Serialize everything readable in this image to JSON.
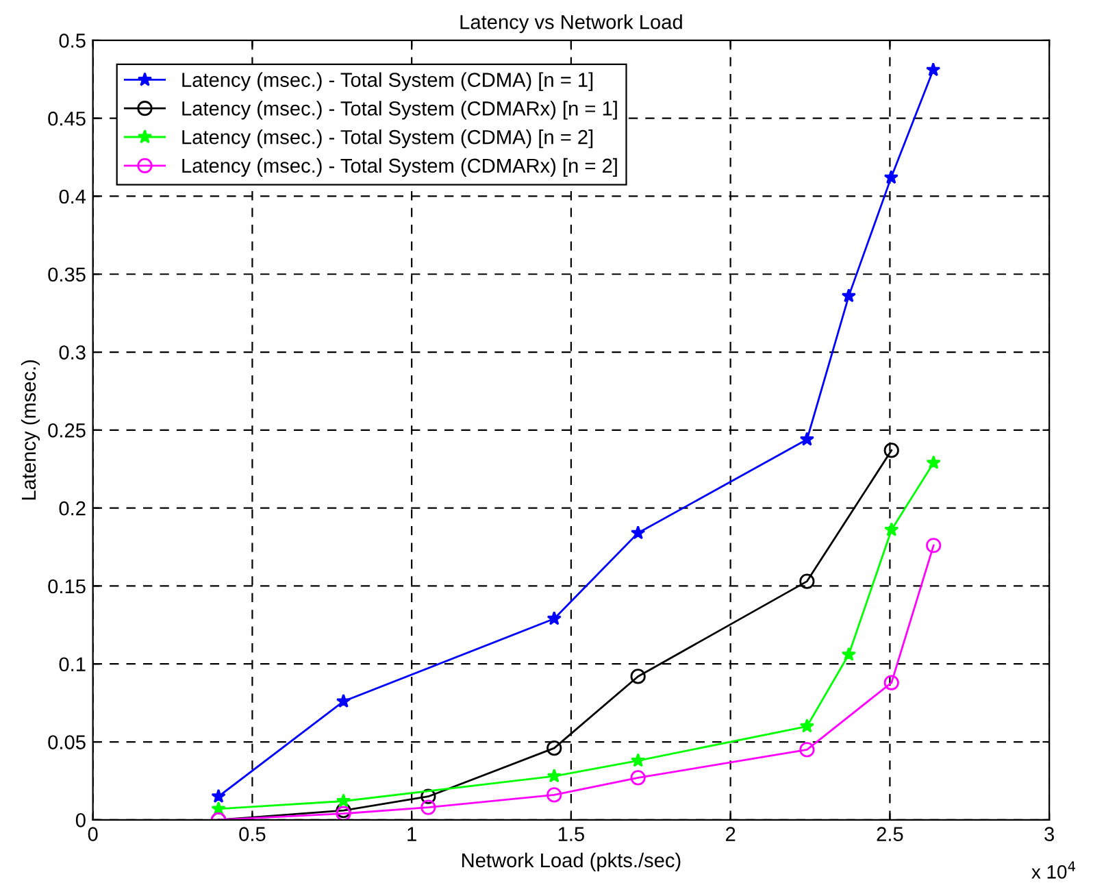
{
  "chart_data": {
    "type": "line",
    "title": "Latency vs Network Load",
    "xlabel": "Network Load (pkts./sec)",
    "ylabel": "Latency (msec.)",
    "annotations": [
      "x 10$^{4}$"
    ],
    "xlim": [
      0,
      3
    ],
    "xticks": [
      0,
      0.5,
      1,
      1.5,
      2,
      2.5,
      3
    ],
    "ylim": [
      0,
      0.5
    ],
    "yticks": [
      0,
      0.05,
      0.1,
      0.15,
      0.2,
      0.25,
      0.3,
      0.35,
      0.4,
      0.45,
      0.5
    ],
    "grid": true,
    "legend": "top left",
    "line_style": "solid",
    "series": [
      {
        "name": "Latency (msec.) - Total System (CDMA) [n = 1]",
        "color": "#0000ff",
        "marker": "star",
        "x": [
          0.394,
          0.786,
          1.447,
          1.71,
          2.24,
          2.371,
          2.504,
          2.636
        ],
        "values": [
          0.015,
          0.076,
          0.129,
          0.184,
          0.244,
          0.336,
          0.412,
          0.481
        ]
      },
      {
        "name": "Latency (msec.) - Total System (CDMARx) [n = 1]",
        "color": "#000000",
        "marker": "circle",
        "x": [
          0.394,
          0.786,
          1.052,
          1.447,
          1.71,
          2.24,
          2.505
        ],
        "values": [
          0.0,
          0.006,
          0.015,
          0.046,
          0.092,
          0.153,
          0.237
        ]
      },
      {
        "name": "Latency (msec.) - Total System (CDMA) [n = 2]",
        "color": "#00ff00",
        "marker": "star",
        "x": [
          0.394,
          0.786,
          1.447,
          1.71,
          2.24,
          2.371,
          2.505,
          2.637
        ],
        "values": [
          0.007,
          0.012,
          0.028,
          0.038,
          0.06,
          0.106,
          0.186,
          0.229
        ]
      },
      {
        "name": "Latency (msec.) - Total System (CDMARx) [n = 2]",
        "color": "#ff00ff",
        "marker": "circle",
        "x": [
          0.394,
          0.786,
          1.052,
          1.447,
          1.71,
          2.24,
          2.505,
          2.637
        ],
        "values": [
          0.0,
          0.004,
          0.008,
          0.016,
          0.027,
          0.045,
          0.088,
          0.176
        ]
      }
    ]
  }
}
